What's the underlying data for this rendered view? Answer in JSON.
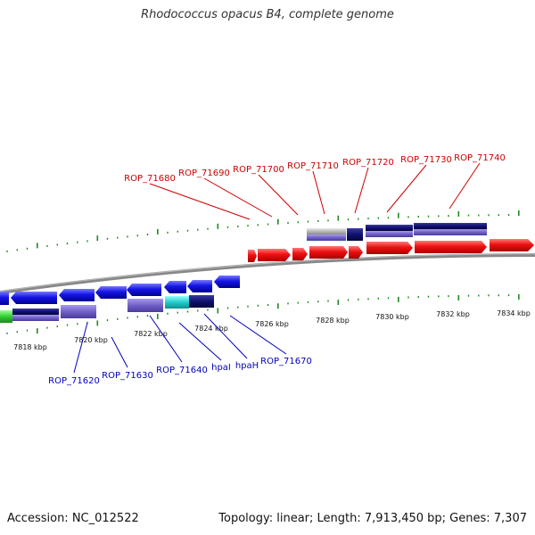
{
  "title": "Rhodococcus opacus B4, complete genome",
  "footer": {
    "accession": "Accession: NC_012522",
    "summary": "Topology: linear; Length: 7,913,450 bp; Genes: 7,307"
  },
  "colors": {
    "forward_gene": "#ee1111",
    "reverse_gene": "#1515e6",
    "forward_label": "#cc0000",
    "reverse_label": "#0000bb",
    "tick": "#228822",
    "backbone": "#888888",
    "navy": "#101070",
    "slate": "#7060c8",
    "cyan": "#22cccc",
    "green": "#33cc33",
    "grey": "#b8b8b8"
  },
  "axis": {
    "unit": "kbp",
    "ticks": [
      "7818 kbp",
      "7820 kbp",
      "7822 kbp",
      "7824 kbp",
      "7826 kbp",
      "7828 kbp",
      "7830 kbp",
      "7832 kbp",
      "7834 kbp"
    ]
  },
  "forward_genes": [
    "ROP_71680",
    "ROP_71690",
    "ROP_71700",
    "ROP_71710",
    "ROP_71720",
    "ROP_71730",
    "ROP_71740"
  ],
  "reverse_genes": [
    "ROP_71620",
    "ROP_71630",
    "ROP_71640",
    "hpaI",
    "hpaH",
    "ROP_71670"
  ]
}
